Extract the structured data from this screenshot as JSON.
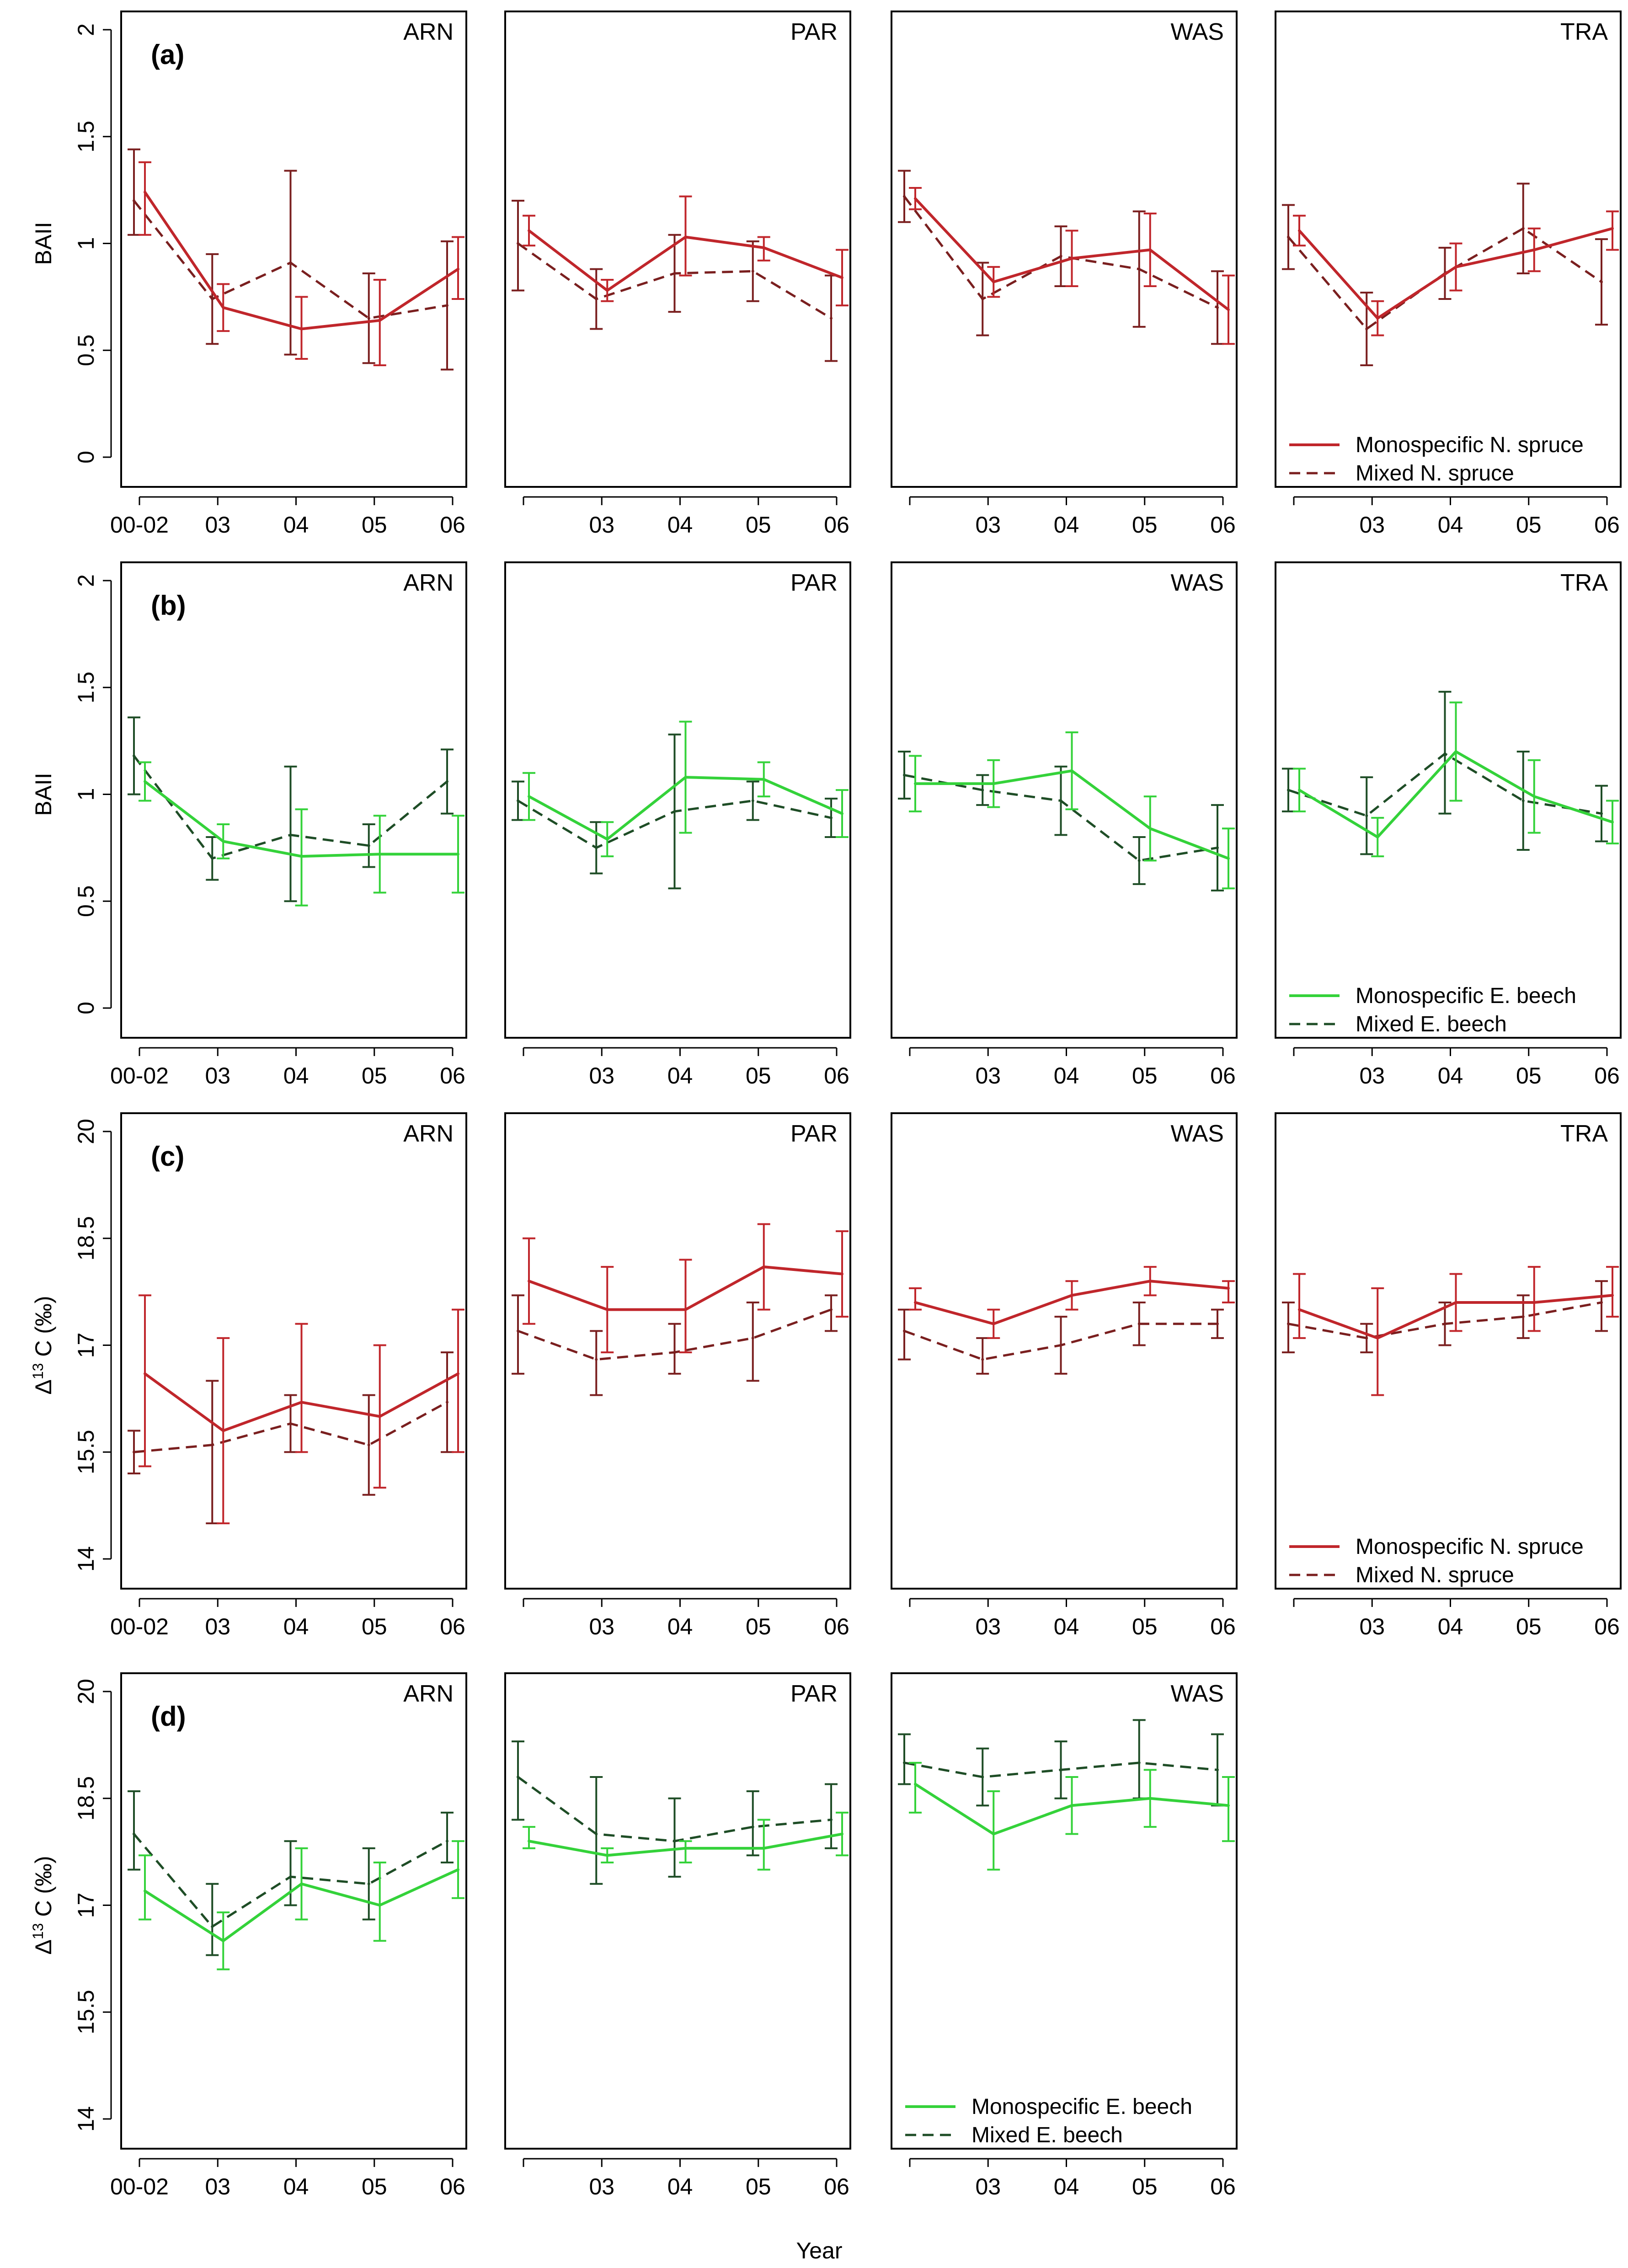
{
  "figure": {
    "xlabel": "Year"
  },
  "colors": {
    "spruce_mono": "#c0262b",
    "spruce_mixed": "#7a1f1f",
    "beech_mono": "#34d23a",
    "beech_mixed": "#1e4d26"
  },
  "chart_data": [
    {
      "type": "line",
      "panel": "(a)",
      "ylabel": "BAII",
      "yticks": [
        "0",
        "0.5",
        "1",
        "1.5",
        "2"
      ],
      "ylim": [
        0,
        2
      ],
      "categories_first": [
        "00-02",
        "03",
        "04",
        "05",
        "06"
      ],
      "categories": [
        "",
        "03",
        "04",
        "05",
        "06"
      ],
      "legend": {
        "site": "TRA",
        "mono": "Monospecific N. spruce",
        "mixed": "Mixed N. spruce"
      },
      "colors": {
        "mono": "#c0262b",
        "mixed": "#7a1f1f"
      },
      "sites": [
        {
          "name": "ARN",
          "series": [
            {
              "name": "Monospecific N. spruce",
              "values": [
                1.24,
                0.7,
                0.6,
                0.64,
                0.88
              ],
              "low": [
                1.04,
                0.59,
                0.46,
                0.43,
                0.74
              ],
              "high": [
                1.38,
                0.81,
                0.75,
                0.83,
                1.03
              ]
            },
            {
              "name": "Mixed N. spruce",
              "values": [
                1.2,
                0.74,
                0.91,
                0.65,
                0.71
              ],
              "low": [
                1.04,
                0.53,
                0.48,
                0.44,
                0.41
              ],
              "high": [
                1.44,
                0.95,
                1.34,
                0.86,
                1.01
              ]
            }
          ]
        },
        {
          "name": "PAR",
          "series": [
            {
              "name": "Monospecific N. spruce",
              "values": [
                1.06,
                0.78,
                1.03,
                0.98,
                0.84
              ],
              "low": [
                0.99,
                0.73,
                0.85,
                0.92,
                0.71
              ],
              "high": [
                1.13,
                0.83,
                1.22,
                1.03,
                0.97
              ]
            },
            {
              "name": "Mixed N. spruce",
              "values": [
                1.0,
                0.74,
                0.86,
                0.87,
                0.65
              ],
              "low": [
                0.78,
                0.6,
                0.68,
                0.73,
                0.45
              ],
              "high": [
                1.2,
                0.88,
                1.04,
                1.01,
                0.85
              ]
            }
          ]
        },
        {
          "name": "WAS",
          "series": [
            {
              "name": "Monospecific N. spruce",
              "values": [
                1.21,
                0.82,
                0.93,
                0.97,
                0.69
              ],
              "low": [
                1.16,
                0.75,
                0.8,
                0.8,
                0.53
              ],
              "high": [
                1.26,
                0.89,
                1.06,
                1.14,
                0.85
              ]
            },
            {
              "name": "Mixed N. spruce",
              "values": [
                1.22,
                0.74,
                0.94,
                0.88,
                0.7
              ],
              "low": [
                1.1,
                0.57,
                0.8,
                0.61,
                0.53
              ],
              "high": [
                1.34,
                0.91,
                1.08,
                1.15,
                0.87
              ]
            }
          ]
        },
        {
          "name": "TRA",
          "series": [
            {
              "name": "Monospecific N. spruce",
              "values": [
                1.06,
                0.65,
                0.89,
                0.97,
                1.07
              ],
              "low": [
                0.99,
                0.57,
                0.78,
                0.87,
                0.97
              ],
              "high": [
                1.13,
                0.73,
                1.0,
                1.07,
                1.15
              ]
            },
            {
              "name": "Mixed N. spruce",
              "values": [
                1.03,
                0.6,
                0.86,
                1.07,
                0.82
              ],
              "low": [
                0.88,
                0.43,
                0.74,
                0.86,
                0.62
              ],
              "high": [
                1.18,
                0.77,
                0.98,
                1.28,
                1.02
              ]
            }
          ]
        }
      ]
    },
    {
      "type": "line",
      "panel": "(b)",
      "ylabel": "BAII",
      "yticks": [
        "0",
        "0.5",
        "1",
        "1.5",
        "2"
      ],
      "ylim": [
        0,
        2
      ],
      "categories_first": [
        "00-02",
        "03",
        "04",
        "05",
        "06"
      ],
      "categories": [
        "",
        "03",
        "04",
        "05",
        "06"
      ],
      "legend": {
        "site": "TRA",
        "mono": "Monospecific E. beech",
        "mixed": "Mixed E. beech"
      },
      "colors": {
        "mono": "#34d23a",
        "mixed": "#1e4d26"
      },
      "sites": [
        {
          "name": "ARN",
          "series": [
            {
              "name": "Monospecific E. beech",
              "values": [
                1.06,
                0.78,
                0.71,
                0.72,
                0.72
              ],
              "low": [
                0.97,
                0.7,
                0.48,
                0.54,
                0.54
              ],
              "high": [
                1.15,
                0.86,
                0.93,
                0.9,
                0.9
              ]
            },
            {
              "name": "Mixed E. beech",
              "values": [
                1.18,
                0.7,
                0.81,
                0.76,
                1.06
              ],
              "low": [
                1.0,
                0.6,
                0.5,
                0.66,
                0.91
              ],
              "high": [
                1.36,
                0.8,
                1.13,
                0.86,
                1.21
              ]
            }
          ]
        },
        {
          "name": "PAR",
          "series": [
            {
              "name": "Monospecific E. beech",
              "values": [
                0.99,
                0.79,
                1.08,
                1.07,
                0.91
              ],
              "low": [
                0.88,
                0.71,
                0.82,
                0.99,
                0.8
              ],
              "high": [
                1.1,
                0.87,
                1.34,
                1.15,
                1.02
              ]
            },
            {
              "name": "Mixed E. beech",
              "values": [
                0.97,
                0.75,
                0.92,
                0.97,
                0.89
              ],
              "low": [
                0.88,
                0.63,
                0.56,
                0.88,
                0.8
              ],
              "high": [
                1.06,
                0.87,
                1.28,
                1.06,
                0.98
              ]
            }
          ]
        },
        {
          "name": "WAS",
          "series": [
            {
              "name": "Monospecific E. beech",
              "values": [
                1.05,
                1.05,
                1.11,
                0.84,
                0.7
              ],
              "low": [
                0.92,
                0.94,
                0.93,
                0.69,
                0.56
              ],
              "high": [
                1.18,
                1.16,
                1.29,
                0.99,
                0.84
              ]
            },
            {
              "name": "Mixed E. beech",
              "values": [
                1.09,
                1.02,
                0.97,
                0.69,
                0.75
              ],
              "low": [
                0.98,
                0.95,
                0.81,
                0.58,
                0.55
              ],
              "high": [
                1.2,
                1.09,
                1.13,
                0.8,
                0.95
              ]
            }
          ]
        },
        {
          "name": "TRA",
          "series": [
            {
              "name": "Monospecific E. beech",
              "values": [
                1.02,
                0.8,
                1.2,
                0.99,
                0.87
              ],
              "low": [
                0.92,
                0.71,
                0.97,
                0.82,
                0.77
              ],
              "high": [
                1.12,
                0.89,
                1.43,
                1.16,
                0.97
              ]
            },
            {
              "name": "Mixed E. beech",
              "values": [
                1.02,
                0.9,
                1.19,
                0.97,
                0.91
              ],
              "low": [
                0.92,
                0.72,
                0.91,
                0.74,
                0.78
              ],
              "high": [
                1.12,
                1.08,
                1.48,
                1.2,
                1.04
              ]
            }
          ]
        }
      ]
    },
    {
      "type": "line",
      "panel": "(c)",
      "ylabel_prefix": "Δ",
      "ylabel_sup": "13",
      "ylabel_suffix": " C (‰)",
      "yticks": [
        "14",
        "15.5",
        "17",
        "18.5",
        "20"
      ],
      "ylim": [
        14,
        20
      ],
      "categories_first": [
        "00-02",
        "03",
        "04",
        "05",
        "06"
      ],
      "categories": [
        "",
        "03",
        "04",
        "05",
        "06"
      ],
      "legend": {
        "site": "TRA",
        "mono": "Monospecific N. spruce",
        "mixed": "Mixed N. spruce"
      },
      "colors": {
        "mono": "#c0262b",
        "mixed": "#7a1f1f"
      },
      "sites": [
        {
          "name": "ARN",
          "series": [
            {
              "name": "Monospecific N. spruce",
              "values": [
                16.6,
                15.8,
                16.2,
                16.0,
                16.6
              ],
              "low": [
                15.3,
                14.5,
                15.5,
                15.0,
                15.5
              ],
              "high": [
                17.7,
                17.1,
                17.3,
                17.0,
                17.5
              ]
            },
            {
              "name": "Mixed N. spruce",
              "values": [
                15.5,
                15.6,
                15.9,
                15.6,
                16.2
              ],
              "low": [
                15.2,
                14.5,
                15.5,
                14.9,
                15.5
              ],
              "high": [
                15.8,
                16.5,
                16.3,
                16.3,
                16.9
              ]
            }
          ]
        },
        {
          "name": "PAR",
          "series": [
            {
              "name": "Monospecific N. spruce",
              "values": [
                17.9,
                17.5,
                17.5,
                18.1,
                18.0
              ],
              "low": [
                17.3,
                16.9,
                16.9,
                17.5,
                17.4
              ],
              "high": [
                18.5,
                18.1,
                18.2,
                18.7,
                18.6
              ]
            },
            {
              "name": "Mixed N. spruce",
              "values": [
                17.2,
                16.8,
                16.9,
                17.1,
                17.5
              ],
              "low": [
                16.6,
                16.3,
                16.6,
                16.5,
                17.2
              ],
              "high": [
                17.7,
                17.2,
                17.3,
                17.6,
                17.7
              ]
            }
          ]
        },
        {
          "name": "WAS",
          "series": [
            {
              "name": "Monospecific N. spruce",
              "values": [
                17.6,
                17.3,
                17.7,
                17.9,
                17.8
              ],
              "low": [
                17.5,
                17.1,
                17.5,
                17.7,
                17.6
              ],
              "high": [
                17.8,
                17.5,
                17.9,
                18.1,
                17.9
              ]
            },
            {
              "name": "Mixed N. spruce",
              "values": [
                17.2,
                16.8,
                17.0,
                17.3,
                17.3
              ],
              "low": [
                16.8,
                16.6,
                16.6,
                17.0,
                17.1
              ],
              "high": [
                17.5,
                17.1,
                17.4,
                17.6,
                17.5
              ]
            }
          ]
        },
        {
          "name": "TRA",
          "series": [
            {
              "name": "Monospecific N. spruce",
              "values": [
                17.5,
                17.1,
                17.6,
                17.6,
                17.7
              ],
              "low": [
                17.1,
                16.3,
                17.2,
                17.2,
                17.4
              ],
              "high": [
                18.0,
                17.8,
                18.0,
                18.1,
                18.1
              ]
            },
            {
              "name": "Mixed N. spruce",
              "values": [
                17.3,
                17.1,
                17.3,
                17.4,
                17.6
              ],
              "low": [
                16.9,
                16.9,
                17.0,
                17.1,
                17.2
              ],
              "high": [
                17.6,
                17.3,
                17.6,
                17.7,
                17.9
              ]
            }
          ]
        }
      ]
    },
    {
      "type": "line",
      "panel": "(d)",
      "ylabel_prefix": "Δ",
      "ylabel_sup": "13",
      "ylabel_suffix": " C (‰)",
      "yticks": [
        "14",
        "15.5",
        "17",
        "18.5",
        "20"
      ],
      "ylim": [
        14,
        20
      ],
      "categories_first": [
        "00-02",
        "03",
        "04",
        "05",
        "06"
      ],
      "categories": [
        "",
        "03",
        "04",
        "05",
        "06"
      ],
      "legend": {
        "site": "WAS",
        "mono": "Monospecific E. beech",
        "mixed": "Mixed E. beech"
      },
      "colors": {
        "mono": "#34d23a",
        "mixed": "#1e4d26"
      },
      "sites": [
        {
          "name": "ARN",
          "series": [
            {
              "name": "Monospecific E. beech",
              "values": [
                17.2,
                16.5,
                17.3,
                17.0,
                17.5
              ],
              "low": [
                16.8,
                16.1,
                16.8,
                16.5,
                17.1
              ],
              "high": [
                17.7,
                16.9,
                17.8,
                17.6,
                17.9
              ]
            },
            {
              "name": "Mixed E. beech",
              "values": [
                18.0,
                16.7,
                17.4,
                17.3,
                17.9
              ],
              "low": [
                17.5,
                16.3,
                17.0,
                16.8,
                17.6
              ],
              "high": [
                18.6,
                17.3,
                17.9,
                17.8,
                18.3
              ]
            }
          ]
        },
        {
          "name": "PAR",
          "series": [
            {
              "name": "Monospecific E. beech",
              "values": [
                17.9,
                17.7,
                17.8,
                17.8,
                18.0
              ],
              "low": [
                17.8,
                17.6,
                17.6,
                17.5,
                17.7
              ],
              "high": [
                18.1,
                17.8,
                17.9,
                18.2,
                18.3
              ]
            },
            {
              "name": "Mixed E. beech",
              "values": [
                18.8,
                18.0,
                17.9,
                18.1,
                18.2
              ],
              "low": [
                18.2,
                17.3,
                17.4,
                17.7,
                17.8
              ],
              "high": [
                19.3,
                18.8,
                18.5,
                18.6,
                18.7
              ]
            }
          ]
        },
        {
          "name": "WAS",
          "series": [
            {
              "name": "Monospecific E. beech",
              "values": [
                18.7,
                18.0,
                18.4,
                18.5,
                18.4
              ],
              "low": [
                18.3,
                17.5,
                18.0,
                18.1,
                17.9
              ],
              "high": [
                19.0,
                18.6,
                18.8,
                18.9,
                18.8
              ]
            },
            {
              "name": "Mixed E. beech",
              "values": [
                19.0,
                18.8,
                18.9,
                19.0,
                18.9
              ],
              "low": [
                18.7,
                18.4,
                18.5,
                18.5,
                18.4
              ],
              "high": [
                19.4,
                19.2,
                19.3,
                19.6,
                19.4
              ]
            }
          ]
        }
      ]
    }
  ]
}
